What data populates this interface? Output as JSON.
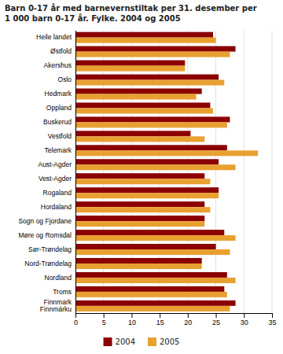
{
  "chart_data": {
    "type": "bar",
    "orientation": "horizontal",
    "title": "Barn 0-17 år med barnevernstiltak per 31. desember per\n1 000 barn 0-17 år. Fylke. 2004 og 2005",
    "categories": [
      "Heile landet",
      "Østfold",
      "Akershus",
      "Oslo",
      "Hedmark",
      "Oppland",
      "Buskerud",
      "Vestfold",
      "Telemark",
      "Aust-Agder",
      "Vest-Agder",
      "Rogaland",
      "Hordaland",
      "Sogn og Fjordane",
      "Møre og Romsdal",
      "Sør-Trøndelag",
      "Nord-Trøndelag",
      "Nordland",
      "Troms",
      "Finnmark\nFinnmárku"
    ],
    "series": [
      {
        "name": "2004",
        "color": "#8B0000",
        "values": [
          24.5,
          28.5,
          19.5,
          25.5,
          22.5,
          24.0,
          27.5,
          20.5,
          27.0,
          25.5,
          23.0,
          25.5,
          23.0,
          23.0,
          26.5,
          25.0,
          22.5,
          27.0,
          26.5,
          28.5
        ]
      },
      {
        "name": "2005",
        "color": "#E8A030",
        "values": [
          25.0,
          27.5,
          19.5,
          26.5,
          21.5,
          24.5,
          27.0,
          23.0,
          32.5,
          28.5,
          24.0,
          25.5,
          24.0,
          23.0,
          28.5,
          27.5,
          22.5,
          28.5,
          27.0,
          27.5
        ]
      }
    ],
    "xlim": [
      0,
      35
    ],
    "xticks": [
      0,
      5,
      10,
      15,
      20,
      25,
      30,
      35
    ],
    "grid": true,
    "legend": "bottom"
  }
}
